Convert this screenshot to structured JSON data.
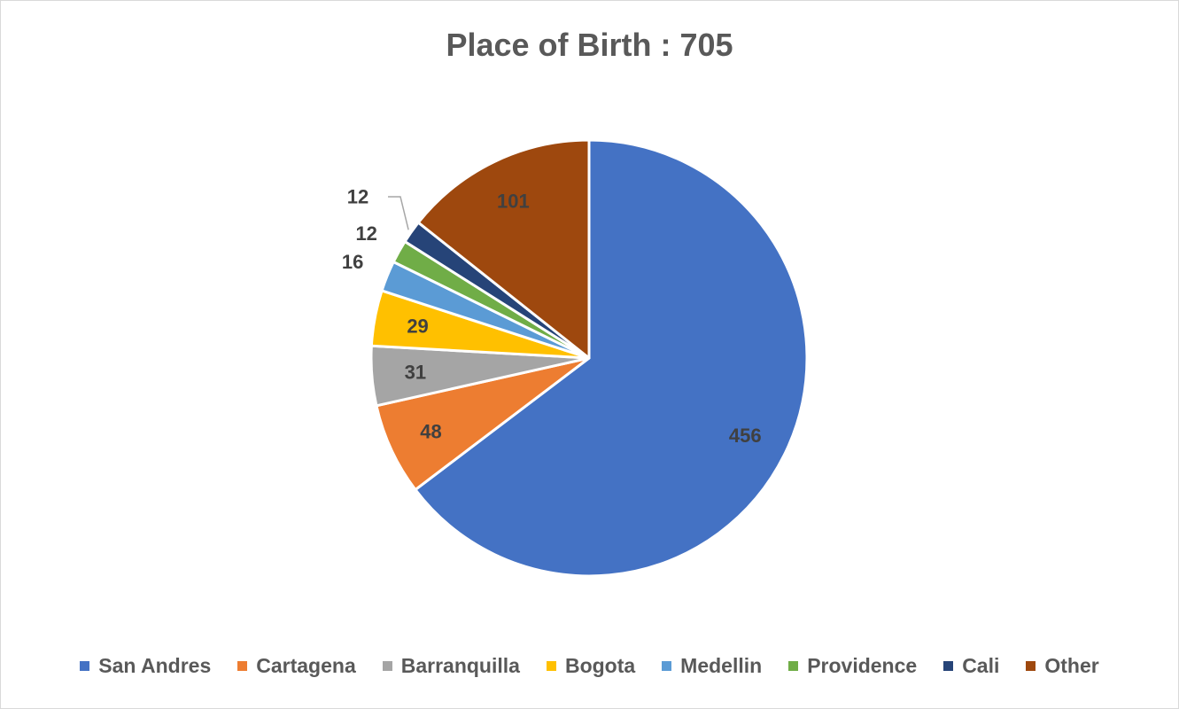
{
  "chart_data": {
    "type": "pie",
    "title": "Place of Birth : 705",
    "categories": [
      "San Andres",
      "Cartagena",
      "Barranquilla",
      "Bogota",
      "Medellin",
      "Providence",
      "Cali",
      "Other"
    ],
    "values": [
      456,
      48,
      31,
      29,
      16,
      12,
      12,
      101
    ],
    "data_labels": [
      "456",
      "48",
      "31",
      "29",
      "16",
      "12",
      "12",
      "101"
    ],
    "colors": [
      "#4472C4",
      "#ED7D31",
      "#A5A5A5",
      "#FFC000",
      "#5B9BD5",
      "#70AD47",
      "#264478",
      "#9E480E"
    ],
    "legend_position": "bottom",
    "start": "top",
    "direction": "clockwise"
  }
}
